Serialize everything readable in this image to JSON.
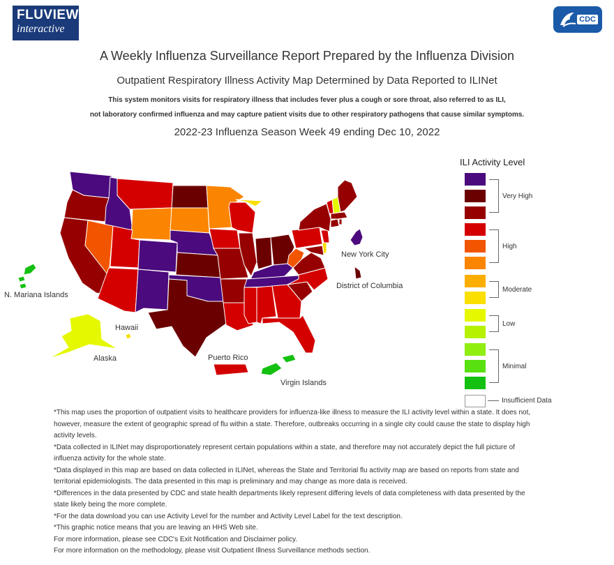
{
  "header": {
    "fluview_logo_line1": "FLUVIEW",
    "fluview_logo_line2": "interactive",
    "cdc_logo_text": "CDC",
    "title": "A Weekly Influenza Surveillance Report Prepared by the Influenza Division",
    "subtitle": "Outpatient Respiratory Illness Activity Map Determined by Data Reported to ILINet",
    "description_line1": "This system monitors visits for respiratory illness that includes fever plus a cough or sore throat, also referred to as ILI,",
    "description_line2": "not laboratory confirmed influenza and may capture patient visits due to other respiratory pathogens that cause similar symptoms.",
    "season_week": "2022-23 Influenza Season Week 49 ending Dec 10, 2022"
  },
  "legend": {
    "title": "ILI Activity Level",
    "levels": [
      {
        "color": "#4b0a7d"
      },
      {
        "color": "#6b0000"
      },
      {
        "color": "#960000"
      },
      {
        "color": "#d40000"
      },
      {
        "color": "#f25500"
      },
      {
        "color": "#fb8500"
      },
      {
        "color": "#fcae00"
      },
      {
        "color": "#fadf00"
      },
      {
        "color": "#e5f800"
      },
      {
        "color": "#b6f200"
      },
      {
        "color": "#90ee10"
      },
      {
        "color": "#58e010"
      },
      {
        "color": "#14c010"
      }
    ],
    "insufficient_color": "#ffffff",
    "groups": {
      "very_high": "Very High",
      "high": "High",
      "moderate": "Moderate",
      "low": "Low",
      "minimal": "Minimal",
      "insufficient": "Insufficient Data"
    }
  },
  "map": {
    "labels": {
      "new_york_city": "New York City",
      "district_of_columbia": "District of Columbia",
      "n_mariana_islands": "N. Mariana Islands",
      "hawaii": "Hawaii",
      "alaska": "Alaska",
      "puerto_rico": "Puerto Rico",
      "virgin_islands": "Virgin Islands"
    },
    "regions": {
      "Washington": "#4b0a7d",
      "Oregon": "#960000",
      "California": "#960000",
      "Idaho": "#4b0a7d",
      "Nevada": "#f25500",
      "Montana": "#d40000",
      "Wyoming": "#fb8500",
      "Utah": "#d40000",
      "Arizona": "#d40000",
      "Colorado": "#4b0a7d",
      "New Mexico": "#4b0a7d",
      "North Dakota": "#6b0000",
      "South Dakota": "#fb8500",
      "Nebraska": "#4b0a7d",
      "Kansas": "#6b0000",
      "Oklahoma": "#4b0a7d",
      "Texas": "#6b0000",
      "Minnesota": "#fb8500",
      "Iowa": "#d40000",
      "Missouri": "#960000",
      "Arkansas": "#960000",
      "Louisiana": "#d40000",
      "Wisconsin": "#d40000",
      "Illinois": "#960000",
      "Michigan": "#fadf00",
      "Indiana": "#6b0000",
      "Ohio": "#6b0000",
      "Kentucky": "#4b0a7d",
      "Tennessee": "#4b0a7d",
      "Mississippi": "#d40000",
      "Alabama": "#d40000",
      "Georgia": "#d40000",
      "Florida": "#d40000",
      "South Carolina": "#960000",
      "North Carolina": "#d40000",
      "Virginia": "#960000",
      "West Virginia": "#f25500",
      "Pennsylvania": "#d40000",
      "New York": "#960000",
      "Maryland": "#960000",
      "New Jersey": "#d40000",
      "Delaware": "#fadf00",
      "Connecticut": "#960000",
      "Rhode Island": "#960000",
      "Massachusetts": "#960000",
      "Vermont": "#d40000",
      "New Hampshire": "#e5f800",
      "Maine": "#960000",
      "New York City": "#4b0a7d",
      "District of Columbia": "#6b0000",
      "Alaska": "#e5f800",
      "Hawaii": "#fadf00",
      "Puerto Rico": "#d40000",
      "Virgin Islands": "#14c010",
      "N. Mariana Islands": "#14c010"
    }
  },
  "notes": [
    "*This map uses the proportion of outpatient visits to healthcare providers for influenza-like illness to measure the ILI activity level within a state. It does not, however, measure the extent of geographic spread of flu within a state. Therefore, outbreaks occurring in a single city could cause the state to display high activity levels.",
    "*Data collected in ILINet may disproportionately represent certain populations within a state, and therefore may not accurately depict the full picture of influenza activity for the whole state.",
    "*Data displayed in this map are based on data collected in ILINet, whereas the State and Territorial flu activity map are based on reports from state and territorial epidemiologists. The data presented in this map is preliminary and may change as more data is received.",
    "*Differences in the data presented by CDC and state health departments likely represent differing levels of data completeness with data presented by the state likely being the more complete.",
    "*For the data download you can use Activity Level for the number and Activity Level Label for the text description.",
    "*This graphic notice means that you are leaving an HHS Web site.",
    "For more information, please see CDC's Exit Notification and Disclaimer policy.",
    "For more information on the methodology, please visit Outpatient Illness Surveillance methods section."
  ]
}
